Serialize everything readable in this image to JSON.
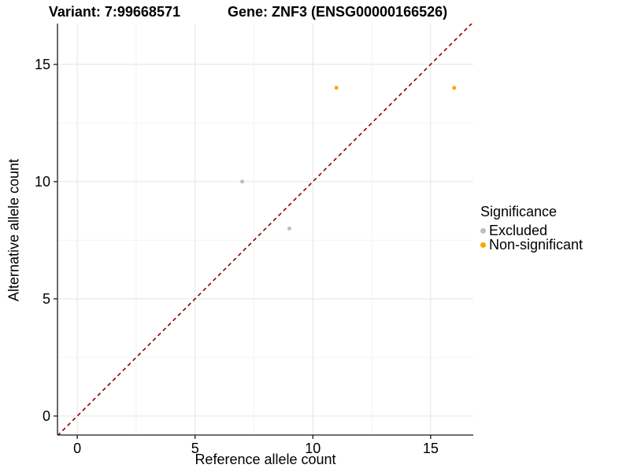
{
  "title": {
    "variant": "Variant: 7:99668571",
    "gene": "Gene: ZNF3 (ENSG00000166526)"
  },
  "axes": {
    "x_title": "Reference allele count",
    "y_title": "Alternative allele count"
  },
  "legend": {
    "title": "Significance",
    "items": [
      {
        "label": "Excluded",
        "color": "#BEBEBE"
      },
      {
        "label": "Non-significant",
        "color": "#FFA500"
      }
    ]
  },
  "chart_data": {
    "type": "scatter",
    "title": "Variant: 7:99668571   Gene: ZNF3 (ENSG00000166526)",
    "xlabel": "Reference allele count",
    "ylabel": "Alternative allele count",
    "xlim": [
      -0.84,
      16.81
    ],
    "ylim": [
      -0.81,
      16.74
    ],
    "x_ticks": [
      0,
      5,
      10,
      15
    ],
    "y_ticks": [
      0,
      5,
      10,
      15
    ],
    "x_minor_ticks": [
      2.5,
      7.5,
      12.5
    ],
    "y_minor_ticks": [
      2.5,
      7.5,
      12.5
    ],
    "grid": true,
    "legend_position": "right",
    "identity_line": {
      "type": "y_equals_x",
      "style": "dashed",
      "color": "#8B0000"
    },
    "series": [
      {
        "name": "Excluded",
        "color": "#BEBEBE",
        "points": [
          [
            7,
            10
          ],
          [
            9,
            8
          ]
        ]
      },
      {
        "name": "Non-significant",
        "color": "#FFA500",
        "points": [
          [
            11,
            14
          ],
          [
            16,
            14
          ]
        ]
      }
    ],
    "colors": {
      "major_grid": "#E4E4E4",
      "minor_grid": "#F4F4F4",
      "axis_line": "#1a1a1a",
      "text": "#000000"
    }
  }
}
